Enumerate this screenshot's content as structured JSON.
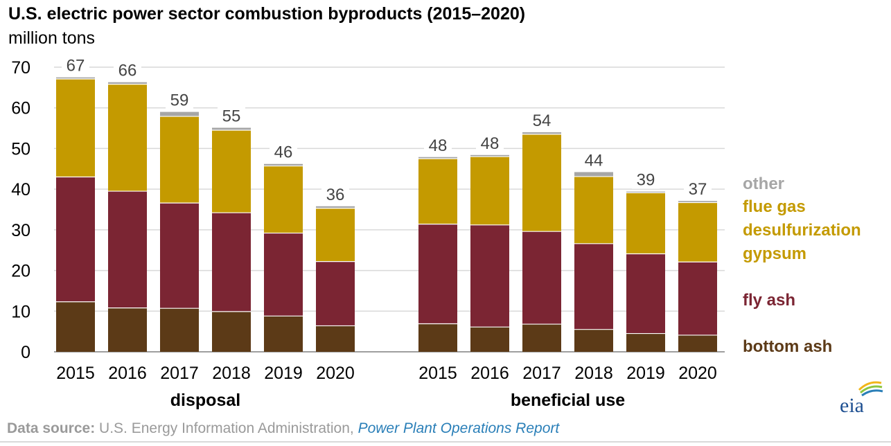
{
  "colors": {
    "bottom_ash": "#5c3a17",
    "fly_ash": "#7b2533",
    "fgd_gypsum": "#c49a00",
    "other": "#a6a6a6",
    "grid": "#d9d9d9",
    "axis_text": "#000000",
    "label_text": "#444444"
  },
  "chart_data": {
    "type": "bar",
    "stacked": true,
    "title": "U.S. electric power sector combustion byproducts (2015–2020)",
    "subtitle": "million tons",
    "xlabel": "",
    "ylabel": "million tons",
    "ylim": [
      0,
      70
    ],
    "yticks": [
      "0",
      "10",
      "20",
      "30",
      "40",
      "50",
      "60",
      "70"
    ],
    "grid": true,
    "legend_position": "right",
    "groups": [
      {
        "name": "disposal",
        "categories": [
          "2015",
          "2016",
          "2017",
          "2018",
          "2019",
          "2020"
        ],
        "totals": [
          "67",
          "66",
          "59",
          "55",
          "46",
          "36"
        ],
        "series": [
          {
            "name": "bottom ash",
            "values": [
              12.3,
              10.8,
              10.7,
              9.9,
              8.8,
              6.4
            ]
          },
          {
            "name": "fly ash",
            "values": [
              30.7,
              28.7,
              25.9,
              24.3,
              20.4,
              15.8
            ]
          },
          {
            "name": "flue gas desulfurization gypsum",
            "values": [
              24.1,
              26.3,
              21.3,
              20.3,
              16.5,
              13.1
            ]
          },
          {
            "name": "other",
            "values": [
              0.4,
              0.5,
              1.1,
              0.6,
              0.5,
              0.5
            ]
          }
        ]
      },
      {
        "name": "beneficial use",
        "categories": [
          "2015",
          "2016",
          "2017",
          "2018",
          "2019",
          "2020"
        ],
        "totals": [
          "48",
          "48",
          "54",
          "44",
          "39",
          "37"
        ],
        "series": [
          {
            "name": "bottom ash",
            "values": [
              6.9,
              6.1,
              6.8,
              5.5,
              4.5,
              4.1
            ]
          },
          {
            "name": "fly ash",
            "values": [
              24.5,
              25.1,
              22.8,
              21.1,
              19.6,
              18.0
            ]
          },
          {
            "name": "flue gas desulfurization gypsum",
            "values": [
              16.1,
              16.8,
              23.9,
              16.5,
              15.0,
              14.6
            ]
          },
          {
            "name": "other",
            "values": [
              0.4,
              0.4,
              0.5,
              1.1,
              0.3,
              0.4
            ]
          }
        ]
      }
    ],
    "legend": [
      {
        "key": "other",
        "lines": [
          "other"
        ]
      },
      {
        "key": "fgd_gypsum",
        "lines": [
          "flue gas",
          "desulfurization",
          "gypsum"
        ]
      },
      {
        "key": "fly_ash",
        "lines": [
          "fly ash"
        ]
      },
      {
        "key": "bottom_ash",
        "lines": [
          "bottom ash"
        ]
      }
    ]
  },
  "source": {
    "label": "Data source:",
    "text": " U.S. Energy Information Administration, ",
    "link": "Power Plant Operations Report"
  },
  "logo": {
    "text": "eia",
    "icon": "eia-sunrise-icon"
  }
}
